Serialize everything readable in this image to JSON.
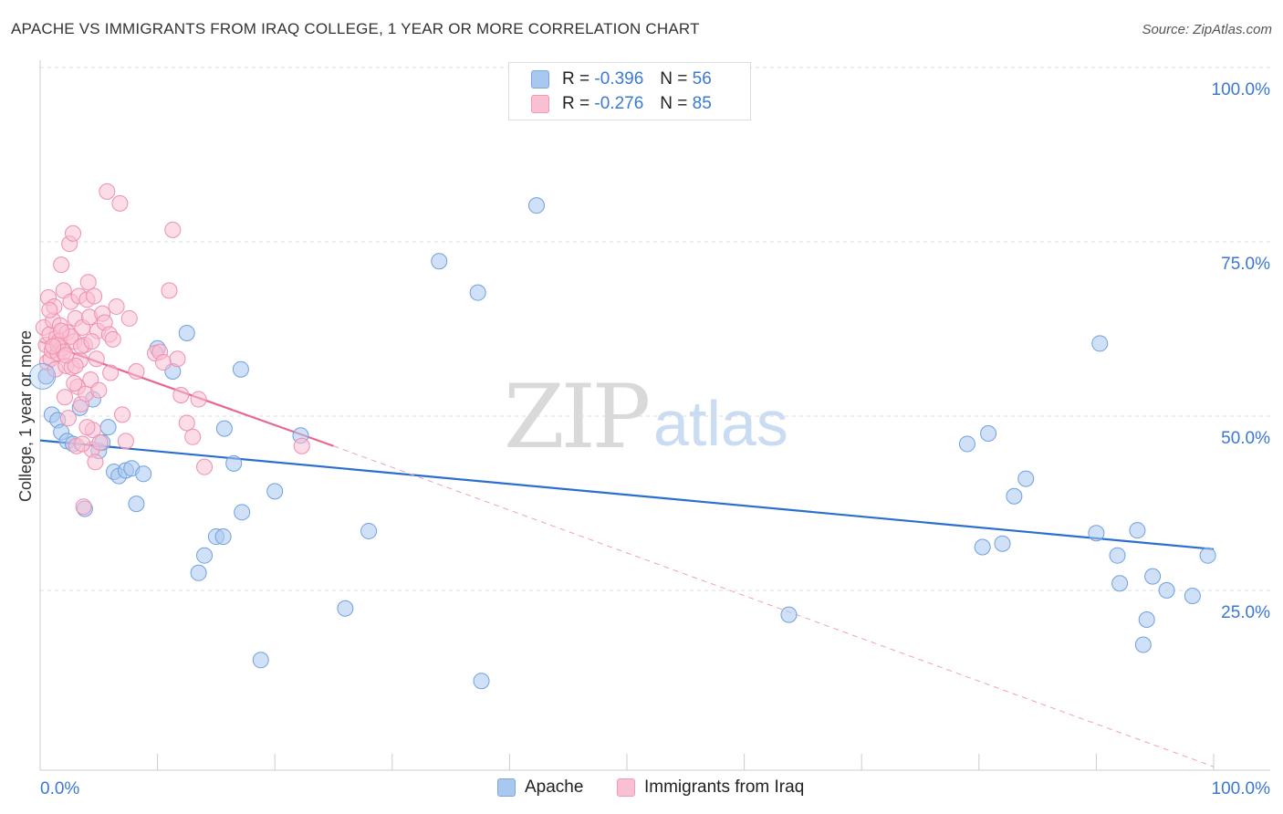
{
  "title": "APACHE VS IMMIGRANTS FROM IRAQ COLLEGE, 1 YEAR OR MORE CORRELATION CHART",
  "source": "Source: ZipAtlas.com",
  "watermark": {
    "zip": "ZIP",
    "atlas": "atlas"
  },
  "legend": {
    "rows": [
      {
        "r_label": "R =",
        "r_value": "-0.396",
        "n_label": "N =",
        "n_value": "56",
        "color": "#a9c8f0",
        "border": "#7aa7e3"
      },
      {
        "r_label": "R =",
        "r_value": "-0.276",
        "n_label": "N =",
        "n_value": "85",
        "color": "#f9c0d2",
        "border": "#f19ab5"
      }
    ]
  },
  "bottom_legend": [
    {
      "label": "Apache",
      "color": "#a9c8f0",
      "border": "#7aa7e3"
    },
    {
      "label": "Immigrants from Iraq",
      "color": "#f9c0d2",
      "border": "#f19ab5"
    }
  ],
  "chart_data": {
    "type": "scatter",
    "ylabel": "College, 1 year or more",
    "xlabel": "",
    "x_tick_labels": [
      "0.0%",
      "100.0%"
    ],
    "y_tick_labels": [
      "25.0%",
      "50.0%",
      "75.0%",
      "100.0%"
    ],
    "xlim": [
      0,
      100
    ],
    "ylim": [
      0,
      100
    ],
    "grid": true,
    "series": [
      {
        "name": "Apache",
        "color": "#6fa0e0",
        "fill": "#a9c8f0",
        "trend": {
          "x0": 0,
          "y0": 47.3,
          "x1": 100,
          "y1": 31.7,
          "color": "#2a6fd0",
          "dashed_to": null
        },
        "points": [
          [
            0.5,
            56.5
          ],
          [
            1.0,
            51.0
          ],
          [
            1.5,
            50.2
          ],
          [
            1.8,
            48.5
          ],
          [
            2.3,
            47.2
          ],
          [
            2.8,
            46.8
          ],
          [
            3.4,
            52.0
          ],
          [
            3.8,
            37.5
          ],
          [
            4.5,
            53.2
          ],
          [
            5.0,
            45.8
          ],
          [
            5.3,
            47.0
          ],
          [
            5.8,
            49.2
          ],
          [
            6.3,
            42.8
          ],
          [
            6.7,
            42.2
          ],
          [
            7.3,
            43.0
          ],
          [
            7.8,
            43.3
          ],
          [
            8.2,
            38.2
          ],
          [
            8.8,
            42.5
          ],
          [
            10.0,
            60.5
          ],
          [
            11.3,
            57.2
          ],
          [
            12.5,
            62.7
          ],
          [
            13.5,
            28.3
          ],
          [
            14.0,
            30.8
          ],
          [
            15.0,
            33.5
          ],
          [
            15.6,
            33.5
          ],
          [
            15.7,
            49.0
          ],
          [
            16.5,
            44.0
          ],
          [
            17.1,
            57.5
          ],
          [
            17.2,
            37.0
          ],
          [
            18.8,
            15.8
          ],
          [
            20.0,
            40.0
          ],
          [
            22.2,
            48.0
          ],
          [
            26.0,
            23.2
          ],
          [
            28.0,
            34.3
          ],
          [
            34.0,
            73.0
          ],
          [
            37.3,
            68.5
          ],
          [
            37.6,
            12.8
          ],
          [
            42.3,
            81.0
          ],
          [
            63.8,
            22.3
          ],
          [
            79.0,
            46.8
          ],
          [
            80.3,
            32.0
          ],
          [
            80.8,
            48.3
          ],
          [
            82.0,
            32.5
          ],
          [
            83.0,
            39.3
          ],
          [
            84.0,
            41.8
          ],
          [
            90.0,
            34.0
          ],
          [
            90.3,
            61.2
          ],
          [
            91.8,
            30.8
          ],
          [
            92.0,
            26.8
          ],
          [
            93.5,
            34.4
          ],
          [
            94.0,
            18.0
          ],
          [
            94.3,
            21.6
          ],
          [
            94.8,
            27.8
          ],
          [
            96.0,
            25.8
          ],
          [
            98.2,
            25.0
          ],
          [
            99.5,
            30.8
          ]
        ]
      },
      {
        "name": "Immigrants from Iraq",
        "color": "#ee8fae",
        "fill": "#f9c0d2",
        "trend": {
          "x0": 0,
          "y0": 61.5,
          "x1": 25,
          "y1": 46.5,
          "color": "#e8668f",
          "dashed_to": {
            "x": 100,
            "y": 0.5
          }
        },
        "points": [
          [
            0.3,
            63.5
          ],
          [
            0.5,
            61.0
          ],
          [
            0.6,
            58.5
          ],
          [
            0.7,
            67.8
          ],
          [
            0.8,
            62.5
          ],
          [
            0.9,
            59.0
          ],
          [
            1.0,
            60.2
          ],
          [
            1.1,
            64.5
          ],
          [
            1.2,
            66.5
          ],
          [
            1.3,
            57.5
          ],
          [
            1.4,
            62.0
          ],
          [
            1.5,
            59.8
          ],
          [
            1.6,
            61.5
          ],
          [
            1.7,
            63.8
          ],
          [
            1.8,
            72.5
          ],
          [
            1.9,
            60.5
          ],
          [
            2.0,
            68.8
          ],
          [
            2.1,
            53.5
          ],
          [
            2.2,
            58.0
          ],
          [
            2.3,
            62.8
          ],
          [
            2.4,
            50.5
          ],
          [
            2.5,
            75.5
          ],
          [
            2.6,
            67.2
          ],
          [
            2.7,
            57.8
          ],
          [
            2.8,
            77.0
          ],
          [
            2.9,
            61.5
          ],
          [
            3.0,
            64.8
          ],
          [
            3.1,
            46.5
          ],
          [
            3.2,
            55.0
          ],
          [
            3.3,
            68.0
          ],
          [
            3.4,
            58.8
          ],
          [
            3.5,
            52.5
          ],
          [
            3.6,
            63.5
          ],
          [
            3.7,
            37.8
          ],
          [
            3.8,
            61.0
          ],
          [
            3.9,
            54.0
          ],
          [
            4.0,
            67.5
          ],
          [
            4.1,
            70.0
          ],
          [
            4.2,
            65.0
          ],
          [
            4.3,
            56.0
          ],
          [
            4.4,
            46.0
          ],
          [
            4.5,
            48.8
          ],
          [
            4.6,
            68.0
          ],
          [
            4.7,
            44.2
          ],
          [
            4.8,
            59.0
          ],
          [
            4.9,
            63.0
          ],
          [
            5.0,
            54.5
          ],
          [
            5.1,
            47.0
          ],
          [
            5.3,
            65.5
          ],
          [
            5.5,
            64.2
          ],
          [
            5.7,
            83.0
          ],
          [
            5.9,
            62.5
          ],
          [
            6.0,
            57.0
          ],
          [
            6.2,
            61.8
          ],
          [
            6.5,
            66.5
          ],
          [
            6.8,
            81.3
          ],
          [
            7.0,
            51.0
          ],
          [
            7.3,
            47.2
          ],
          [
            7.6,
            64.8
          ],
          [
            8.2,
            57.2
          ],
          [
            9.8,
            59.8
          ],
          [
            10.2,
            60.0
          ],
          [
            10.5,
            58.5
          ],
          [
            11.0,
            68.8
          ],
          [
            11.3,
            77.5
          ],
          [
            11.7,
            59.0
          ],
          [
            12.0,
            53.8
          ],
          [
            12.5,
            49.8
          ],
          [
            13.0,
            47.8
          ],
          [
            13.5,
            53.2
          ],
          [
            14.0,
            43.5
          ],
          [
            22.3,
            46.5
          ],
          [
            1.5,
            61.0
          ],
          [
            2.0,
            60.0
          ],
          [
            2.6,
            62.2
          ],
          [
            3.0,
            58.0
          ],
          [
            3.5,
            60.8
          ],
          [
            4.0,
            49.2
          ],
          [
            0.8,
            66.0
          ],
          [
            1.1,
            60.8
          ],
          [
            1.8,
            63.0
          ],
          [
            2.2,
            59.5
          ],
          [
            2.9,
            55.5
          ],
          [
            3.6,
            46.8
          ],
          [
            4.4,
            61.5
          ]
        ]
      }
    ]
  }
}
